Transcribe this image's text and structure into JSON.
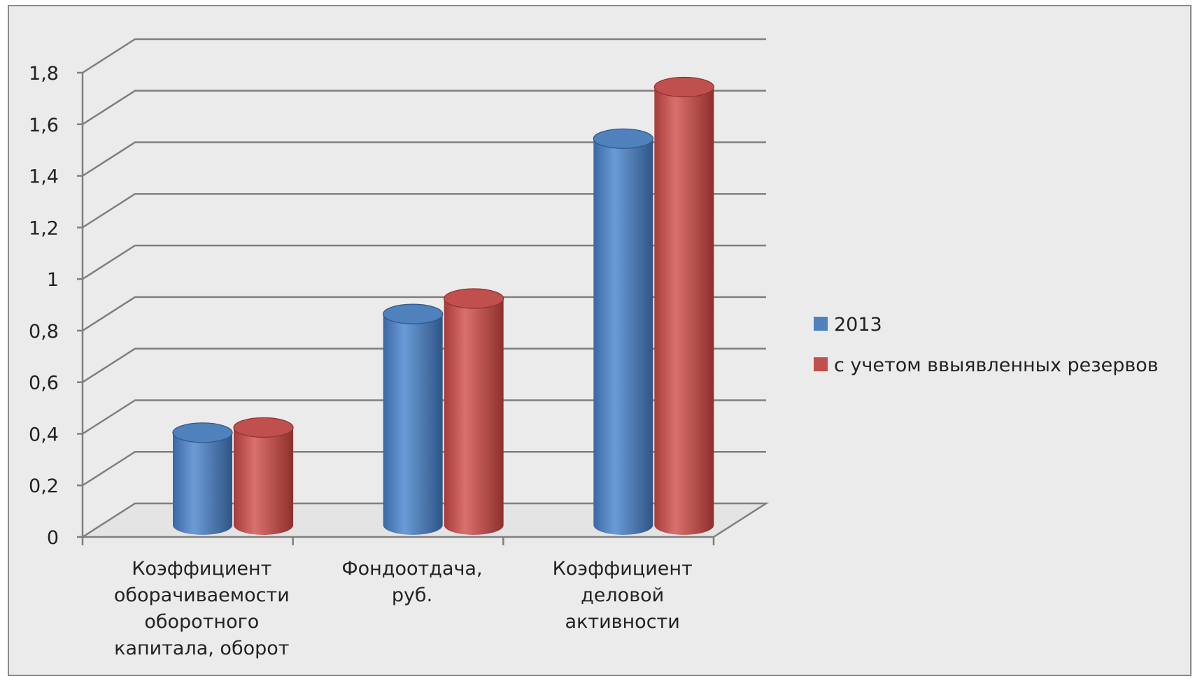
{
  "chart_data": {
    "type": "bar",
    "style": "3d-cylinder",
    "categories": [
      [
        "Коэффициент",
        "оборачиваемости",
        "оборотного",
        "капитала,  оборот"
      ],
      [
        "Фондоотдача,",
        "руб."
      ],
      [
        "Коэффициент",
        "деловой",
        "активности"
      ]
    ],
    "series": [
      {
        "name": "2013",
        "color": "#4F81BD",
        "values": [
          0.38,
          0.84,
          1.52
        ]
      },
      {
        "name": "с учетом ввыявленных резервов",
        "color": "#C0504D",
        "values": [
          0.4,
          0.9,
          1.72
        ]
      }
    ],
    "ylim": [
      0,
      1.8
    ],
    "yticks": [
      "0",
      "0,2",
      "0,4",
      "0,6",
      "0,8",
      "1",
      "1,2",
      "1,4",
      "1,6",
      "1,8"
    ],
    "grid": true,
    "legend": "right",
    "background": "#EBEBEB"
  }
}
